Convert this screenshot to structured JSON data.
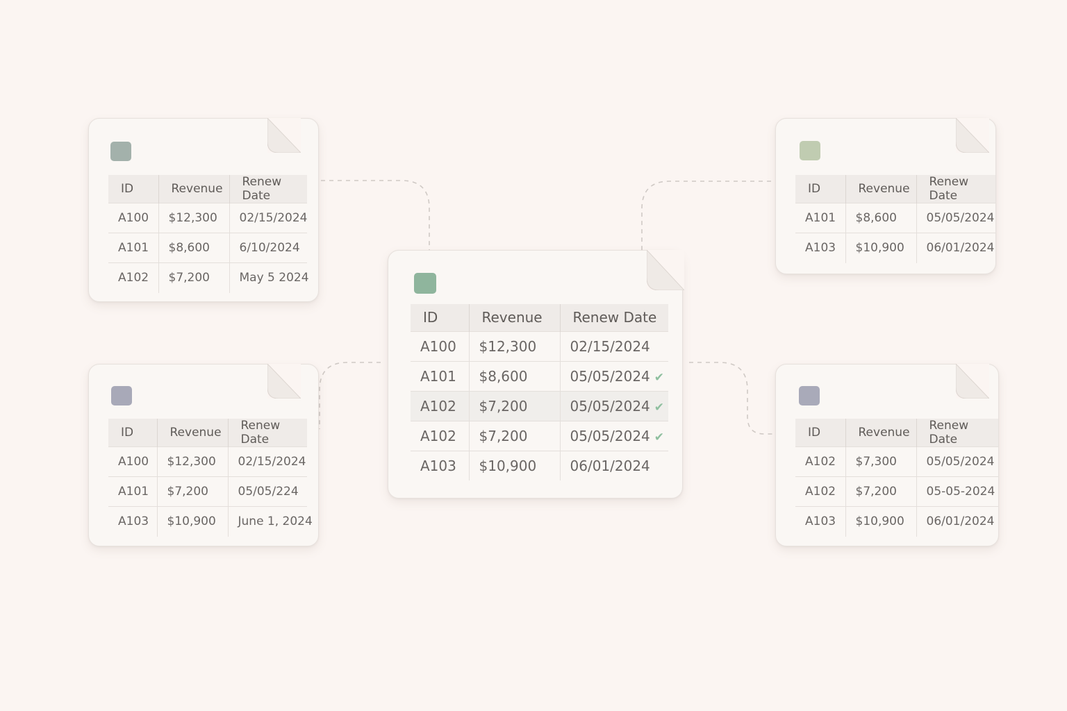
{
  "columns": {
    "id": "ID",
    "revenue": "Revenue",
    "renew_date": "Renew Date"
  },
  "tables": {
    "top_left": {
      "swatch_color": "#a3b1ab",
      "rows": [
        {
          "id": "A100",
          "revenue": "$12,300",
          "date": "02/15/2024"
        },
        {
          "id": "A101",
          "revenue": "$8,600",
          "date": "6/10/2024"
        },
        {
          "id": "A102",
          "revenue": "$7,200",
          "date": "May 5 2024"
        }
      ]
    },
    "top_right": {
      "swatch_color": "#c0ccb1",
      "rows": [
        {
          "id": "A101",
          "revenue": "$8,600",
          "date": "05/05/2024"
        },
        {
          "id": "A103",
          "revenue": "$10,900",
          "date": "06/01/2024"
        }
      ]
    },
    "bottom_left": {
      "swatch_color": "#a8a9b8",
      "rows": [
        {
          "id": "A100",
          "revenue": "$12,300",
          "date": "02/15/2024"
        },
        {
          "id": "A101",
          "revenue": "$7,200",
          "date": "05/05/224"
        },
        {
          "id": "A103",
          "revenue": "$10,900",
          "date": "June 1, 2024"
        }
      ]
    },
    "bottom_right": {
      "swatch_color": "#a9aab9",
      "rows": [
        {
          "id": "A102",
          "revenue": "$7,300",
          "date": "05/05/2024"
        },
        {
          "id": "A102",
          "revenue": "$7,200",
          "date": "05-05-2024"
        },
        {
          "id": "A103",
          "revenue": "$10,900",
          "date": "06/01/2024"
        }
      ]
    },
    "center": {
      "swatch_color": "#8fb59d",
      "check_color": "#8fbf9f",
      "check_icon": "check-icon",
      "rows": [
        {
          "id": "A100",
          "revenue": "$12,300",
          "date": "02/15/2024",
          "checked": false,
          "highlighted": false
        },
        {
          "id": "A101",
          "revenue": "$8,600",
          "date": "05/05/2024",
          "checked": true,
          "highlighted": false
        },
        {
          "id": "A102",
          "revenue": "$7,200",
          "date": "05/05/2024",
          "checked": true,
          "highlighted": true
        },
        {
          "id": "A102",
          "revenue": "$7,200",
          "date": "05/05/2024",
          "checked": true,
          "highlighted": false
        },
        {
          "id": "A103",
          "revenue": "$10,900",
          "date": "06/01/2024",
          "checked": false,
          "highlighted": false
        }
      ]
    }
  }
}
